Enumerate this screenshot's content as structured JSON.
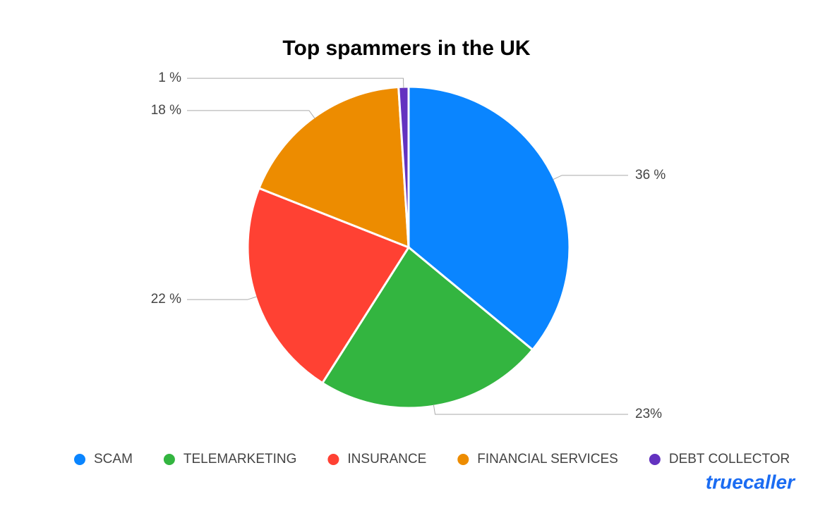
{
  "chart_data": {
    "type": "pie",
    "title": "Top spammers in the UK",
    "categories": [
      "SCAM",
      "TELEMARKETING",
      "INSURANCE",
      "FINANCIAL SERVICES",
      "DEBT COLLECTOR"
    ],
    "values": [
      36,
      23,
      22,
      18,
      1
    ],
    "value_labels": [
      "36 %",
      "23%",
      "22 %",
      "18 %",
      "1 %"
    ],
    "colors": [
      "#0a85ff",
      "#33b540",
      "#ff4133",
      "#ed8c00",
      "#6332c0"
    ],
    "legend": "bottom"
  },
  "logo": "truecaller"
}
